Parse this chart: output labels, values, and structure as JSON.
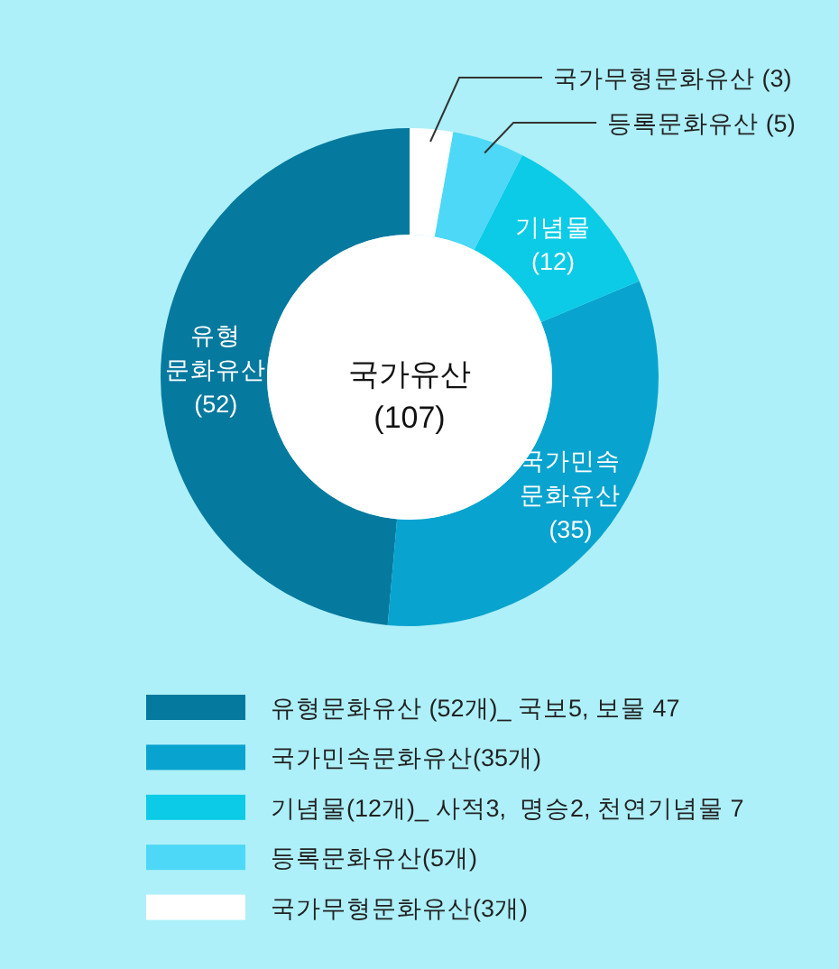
{
  "chart_data": {
    "type": "donut",
    "title": "국가유산",
    "subtitle": "(107)",
    "categories": [
      "유형문화유산 (52개)_ 국보5, 보물 47",
      "국가민속문화유산(35개)",
      "기념물(12개)_ 사적3,  명승2, 천연기념물 7",
      "등록문화유산(5개)",
      "국가무형문화유산(3개)"
    ],
    "values": [
      52,
      35,
      12,
      5,
      3
    ],
    "colors": [
      "#06799e",
      "#09a3cf",
      "#0bcbe6",
      "#4cd8f6",
      "#ffffff"
    ],
    "value_labels": [
      "유형\n문화유산\n(52)",
      "국가민속\n문화유산\n(35)",
      "기념물\n(12)",
      "등록문화유산 (5)",
      "국가무형문화유산 (3)"
    ],
    "legend": "bottom"
  }
}
